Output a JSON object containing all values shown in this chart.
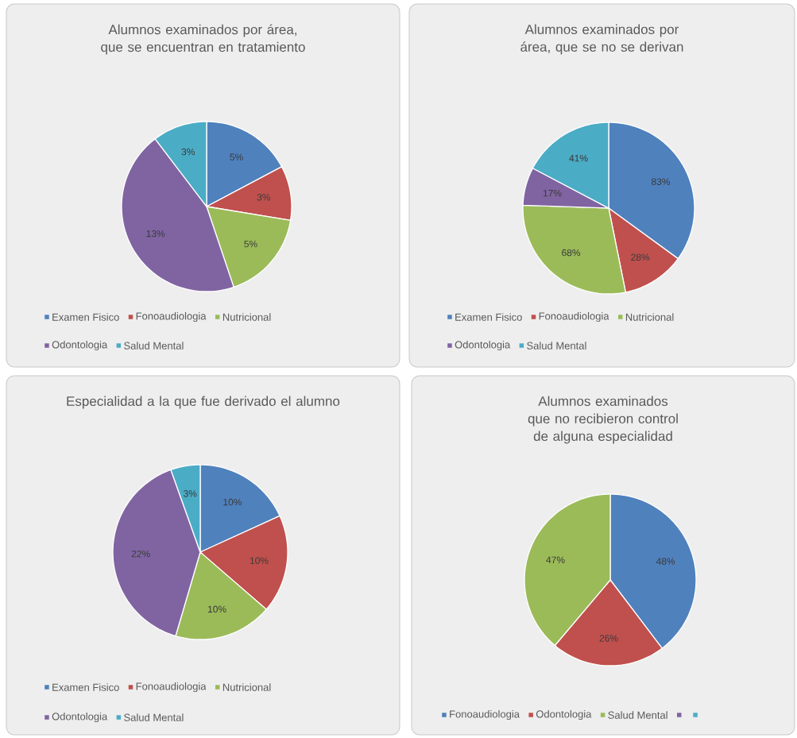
{
  "chart_data": [
    {
      "type": "pie",
      "title": "Alumnos examinados por área, que se encuentran en tratamiento",
      "categories": [
        "Examen Fisico",
        "Fonoaudiologia",
        "Nutricional",
        "Odontologia",
        "Salud Mental"
      ],
      "values": [
        5,
        3,
        5,
        13,
        3
      ],
      "value_labels": [
        "5%",
        "3%",
        "5%",
        "13%",
        "3%"
      ],
      "colors": [
        "#4f81bd",
        "#c0504d",
        "#9bbb59",
        "#8064a2",
        "#4bacc6"
      ],
      "legend": "bottom"
    },
    {
      "type": "pie",
      "title": "Alumnos examinados por área, que se no se derivan",
      "categories": [
        "Examen Fisico",
        "Fonoaudiologia",
        "Nutricional",
        "Odontologia",
        "Salud Mental"
      ],
      "values": [
        83,
        28,
        68,
        17,
        41
      ],
      "value_labels": [
        "83%",
        "28%",
        "68%",
        "17%",
        "41%"
      ],
      "colors": [
        "#4f81bd",
        "#c0504d",
        "#9bbb59",
        "#8064a2",
        "#4bacc6"
      ],
      "legend": "bottom"
    },
    {
      "type": "pie",
      "title": "Especialidad a la que fue derivado el alumno",
      "categories": [
        "Examen Fisico",
        "Fonoaudiologia",
        "Nutricional",
        "Odontologia",
        "Salud Mental"
      ],
      "values": [
        10,
        10,
        10,
        22,
        3
      ],
      "value_labels": [
        "10%",
        "10%",
        "10%",
        "22%",
        "3%"
      ],
      "colors": [
        "#4f81bd",
        "#c0504d",
        "#9bbb59",
        "#8064a2",
        "#4bacc6"
      ],
      "legend": "bottom"
    },
    {
      "type": "pie",
      "title": "Alumnos examinados que no recibieron control de alguna especialidad",
      "categories": [
        "Fonoaudiologia",
        "Odontologia",
        "Salud Mental",
        null,
        null
      ],
      "values": [
        48,
        26,
        47,
        null,
        null
      ],
      "value_labels": [
        "48%",
        "26%",
        "47%",
        null,
        null
      ],
      "colors": [
        "#4f81bd",
        "#c0504d",
        "#9bbb59",
        "#8064a2",
        "#4bacc6"
      ],
      "legend": "bottom"
    }
  ]
}
